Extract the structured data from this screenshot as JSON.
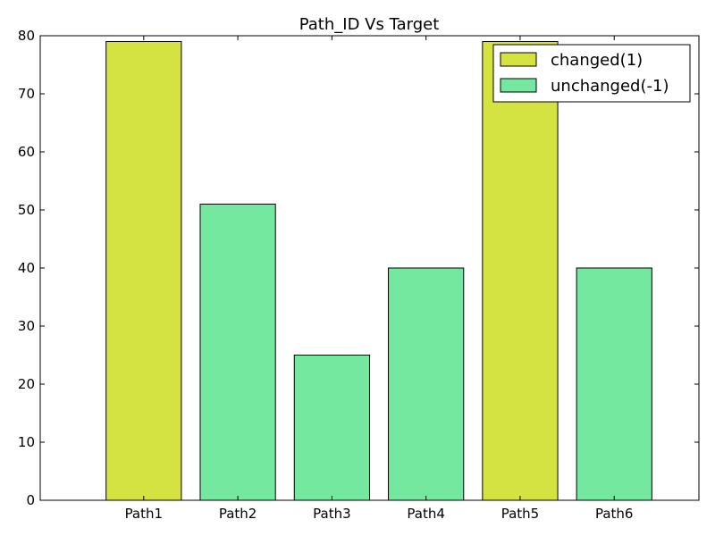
{
  "chart_data": {
    "type": "bar",
    "title": "Path_ID Vs Target",
    "xlabel": "",
    "ylabel": "",
    "categories": [
      "Path1",
      "Path2",
      "Path3",
      "Path4",
      "Path5",
      "Path6"
    ],
    "values": [
      79,
      51,
      25,
      40,
      79,
      40
    ],
    "bar_series": [
      "changed(1)",
      "unchanged(-1)",
      "unchanged(-1)",
      "unchanged(-1)",
      "changed(1)",
      "unchanged(-1)"
    ],
    "ylim": [
      0,
      80
    ],
    "yticks": [
      0,
      10,
      20,
      30,
      40,
      50,
      60,
      70,
      80
    ],
    "grid": false,
    "legend_position": "top-right",
    "series": [
      {
        "name": "changed(1)",
        "color": "#d5e342"
      },
      {
        "name": "unchanged(-1)",
        "color": "#74e89f"
      }
    ]
  }
}
